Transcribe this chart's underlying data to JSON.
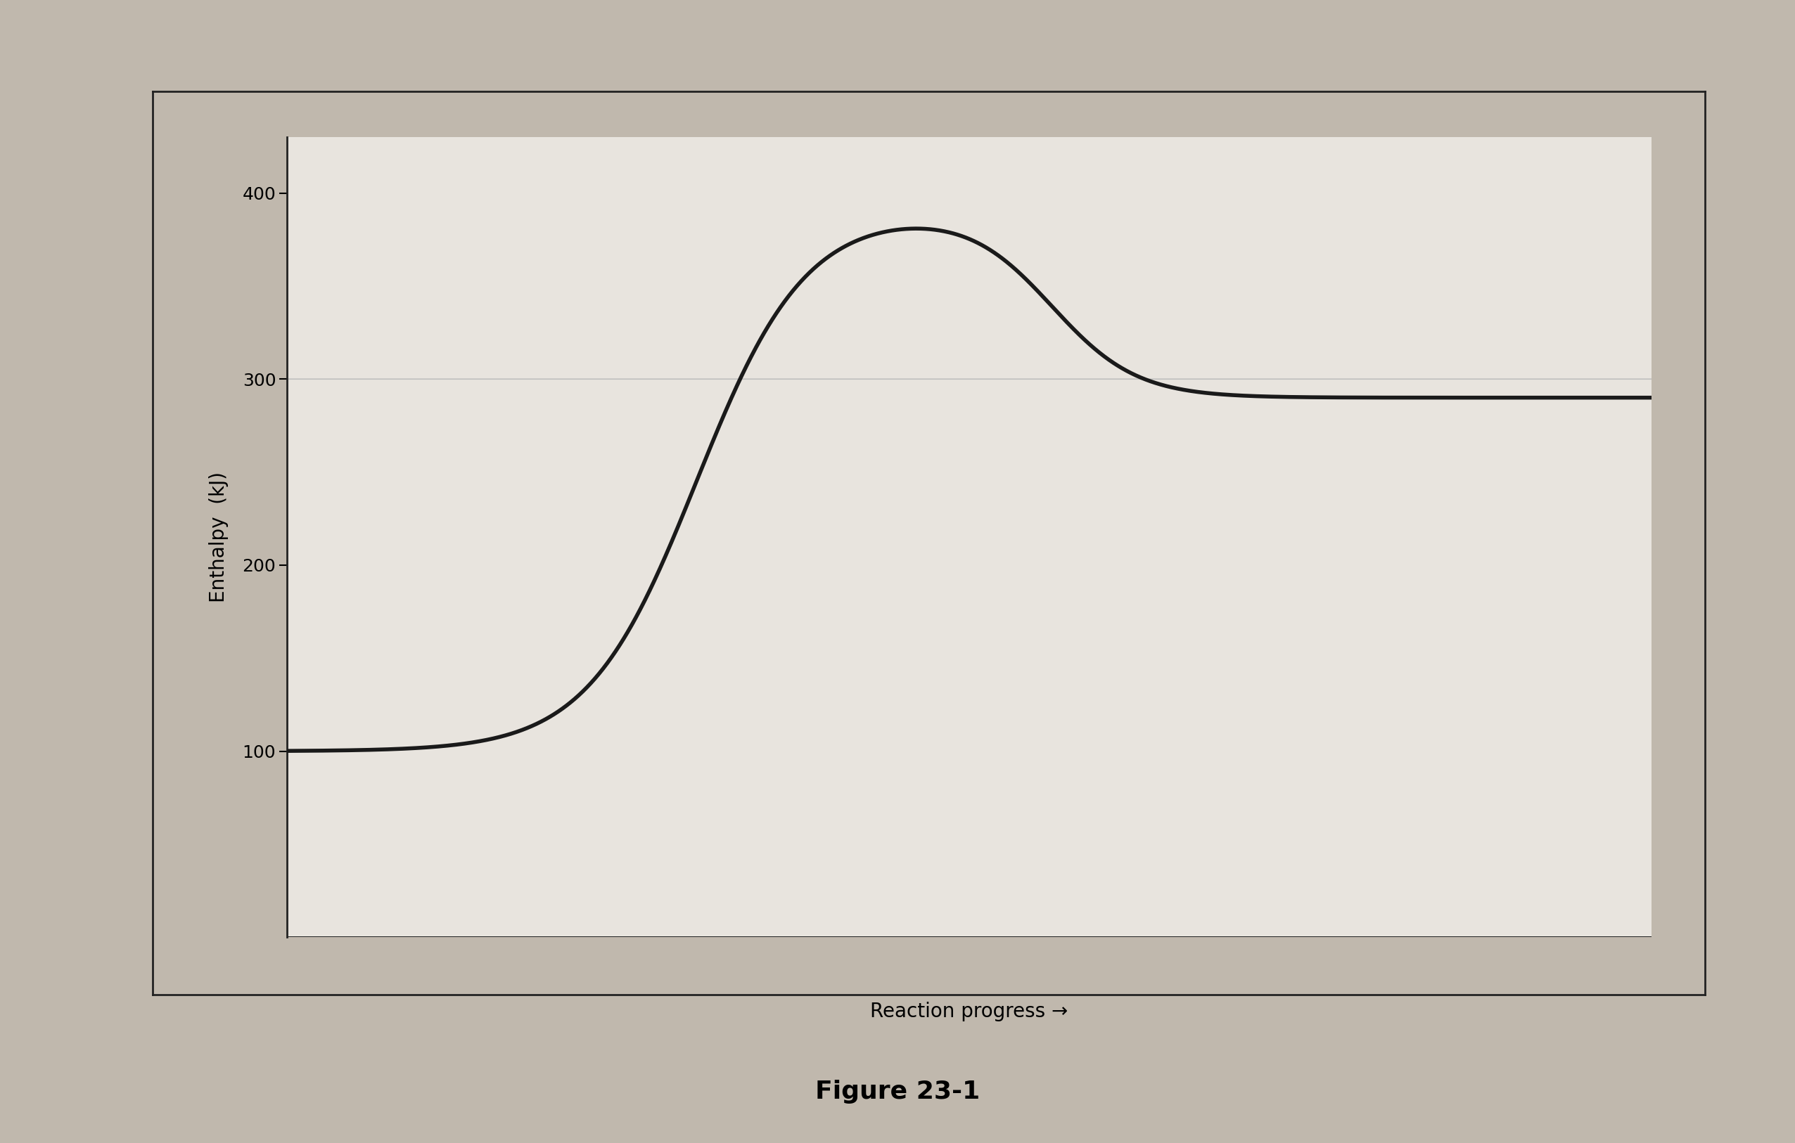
{
  "title": "Figure 23-1",
  "xlabel": "Reaction progress →",
  "ylabel": "Enthalpy  (kJ)",
  "yticks": [
    100,
    200,
    300,
    400
  ],
  "ylim": [
    0,
    430
  ],
  "xlim": [
    0,
    10
  ],
  "reactant_level": 100,
  "product_level": 290,
  "activation_peak": 390,
  "curve_color": "#1a1a1a",
  "curve_linewidth": 4.0,
  "ref_line_color": "#bbbbbb",
  "ref_line_level": 300,
  "plot_bg_color": "#e8e4de",
  "outer_bg_color": "#c0b8ad",
  "title_fontsize": 26,
  "title_fontweight": "bold",
  "xlabel_fontsize": 20,
  "ylabel_fontsize": 20,
  "tick_fontsize": 18,
  "yaxis_x_position": 1.5
}
